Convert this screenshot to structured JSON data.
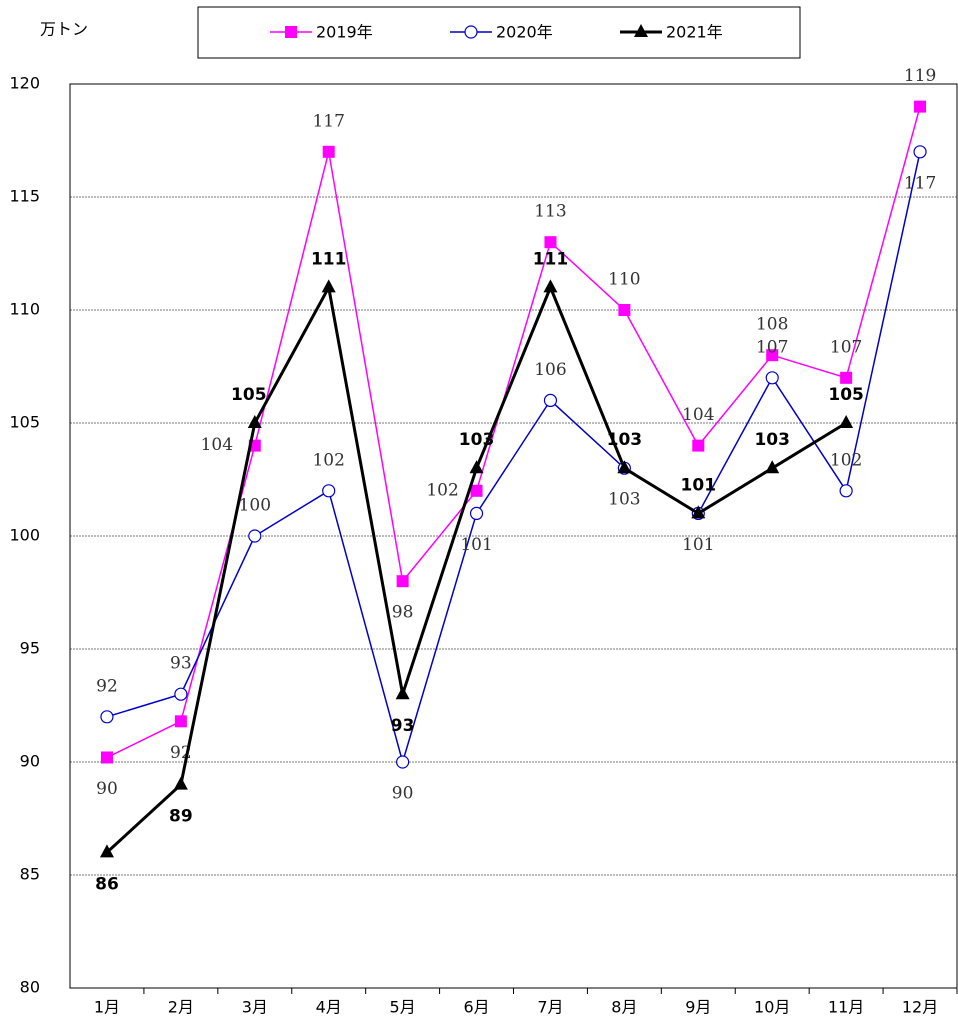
{
  "chart_data": {
    "type": "line",
    "y_label": "万トン",
    "categories": [
      "1月",
      "2月",
      "3月",
      "4月",
      "5月",
      "6月",
      "7月",
      "8月",
      "9月",
      "10月",
      "11月",
      "12月"
    ],
    "series": [
      {
        "name": "2019年",
        "color": "#ff00ff",
        "marker": "square",
        "values": [
          90.2,
          91.8,
          104,
          117,
          98,
          102,
          113,
          110,
          104,
          108,
          107,
          119
        ],
        "value_labels": [
          "90",
          "92",
          "104",
          "117",
          "98",
          "102",
          "113",
          "110",
          "104",
          "108",
          "107",
          "119"
        ]
      },
      {
        "name": "2020年",
        "color": "#0000cc",
        "marker": "circle",
        "values": [
          92,
          93,
          100,
          102,
          90,
          101,
          106,
          103,
          101,
          107,
          102,
          117
        ]
      },
      {
        "name": "2021年",
        "color": "#000000",
        "marker": "triangle",
        "values": [
          86,
          89,
          105,
          111,
          93,
          103,
          111,
          103,
          101,
          103,
          105,
          null
        ]
      }
    ],
    "ylim": [
      80,
      120
    ],
    "yticks": [
      80,
      85,
      90,
      95,
      100,
      105,
      110,
      115,
      120
    ],
    "grid": true
  }
}
